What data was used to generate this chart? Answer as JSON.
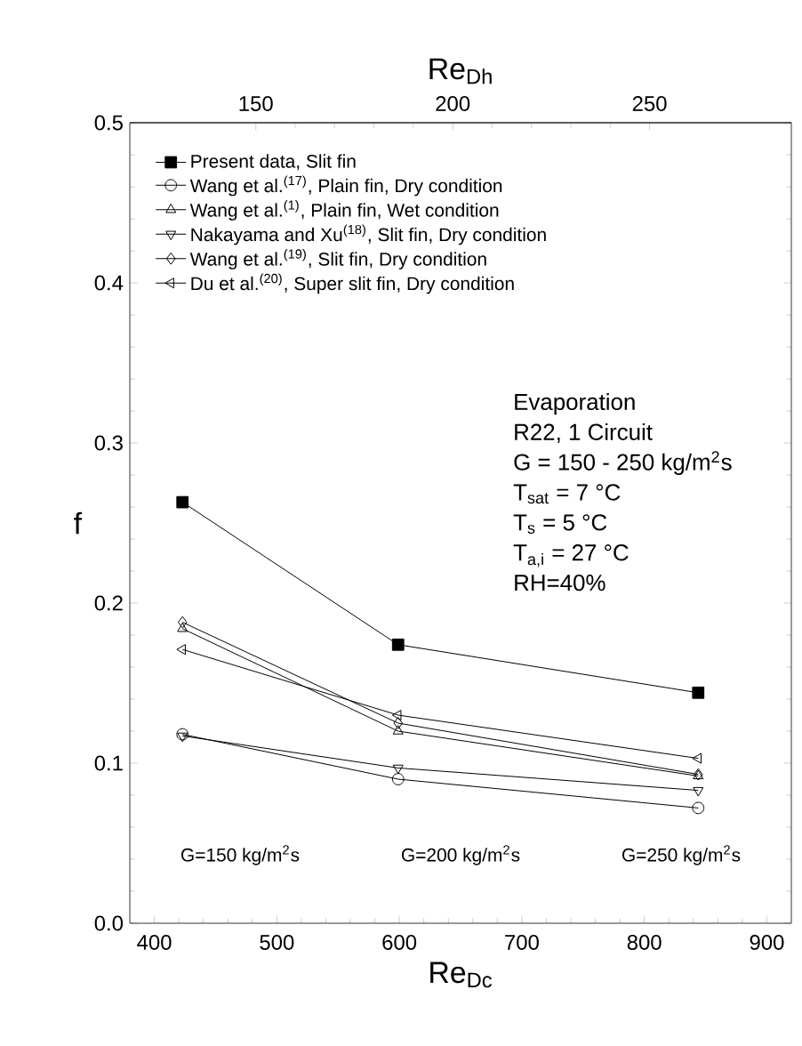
{
  "chart_data": {
    "type": "line",
    "xlabel": "Re$_{Dc}$",
    "x2label": "Re$_{Dh}$",
    "ylabel": "f",
    "xlim": [
      380,
      920
    ],
    "xticks": [
      400,
      500,
      600,
      700,
      800,
      900
    ],
    "x2lim": [
      118,
      286
    ],
    "x2ticks": [
      150,
      200,
      250
    ],
    "ylim": [
      0,
      0.5
    ],
    "yticks": [
      {
        "value": 0,
        "label": "0.0"
      },
      0.1,
      0.2,
      0.3,
      0.4,
      0.5
    ],
    "legend": "top left",
    "grid": false,
    "line_style": "solid",
    "series": [
      {
        "name": "Present data, Slit fin",
        "color": "#000000",
        "marker": "square",
        "x": [
          423,
          599,
          844
        ],
        "values": [
          0.263,
          0.174,
          0.144
        ]
      },
      {
        "name": "Wang et al.$^{(17)}$, Plain fin, Dry condition",
        "color": "#000000",
        "marker": "circle",
        "x": [
          423,
          599,
          844
        ],
        "values": [
          0.118,
          0.09,
          0.072
        ]
      },
      {
        "name": "Wang et al.$^{(1)}$, Plain fin, Wet condition",
        "color": "#000000",
        "marker": "triangle",
        "x": [
          423,
          599,
          844
        ],
        "values": [
          0.184,
          0.12,
          0.092
        ]
      },
      {
        "name": "Nakayama and Xu$^{(18)}$, Slit fin, Dry condition",
        "color": "#000000",
        "marker": "triangle-down",
        "x": [
          423,
          599,
          844
        ],
        "values": [
          0.117,
          0.097,
          0.083
        ]
      },
      {
        "name": "Wang et al.$^{(19)}$, Slit fin, Dry condition",
        "color": "#000000",
        "marker": "diamond",
        "x": [
          423,
          599,
          844
        ],
        "values": [
          0.188,
          0.125,
          0.093
        ]
      },
      {
        "name": "Du et al.$^{(20)}$, Super slit fin, Dry condition",
        "color": "#000000",
        "marker": "triangle-left",
        "x": [
          423,
          599,
          844
        ],
        "values": [
          0.171,
          0.13,
          0.103
        ]
      }
    ],
    "annotations": [
      "Evaporation",
      "R22, 1 Circuit",
      "G = 150 - 250 kg/m$^{2}$s",
      "T$_{sat}$ = 7 °C",
      "T$_{s}$ = 5 °C",
      "T$_{a,i}$ = 27 °C",
      "RH=40%",
      "G=150 kg/m$^{2}$s",
      "G=200 kg/m$^{2}$s",
      "G=250 kg/m$^{2}$s"
    ]
  }
}
